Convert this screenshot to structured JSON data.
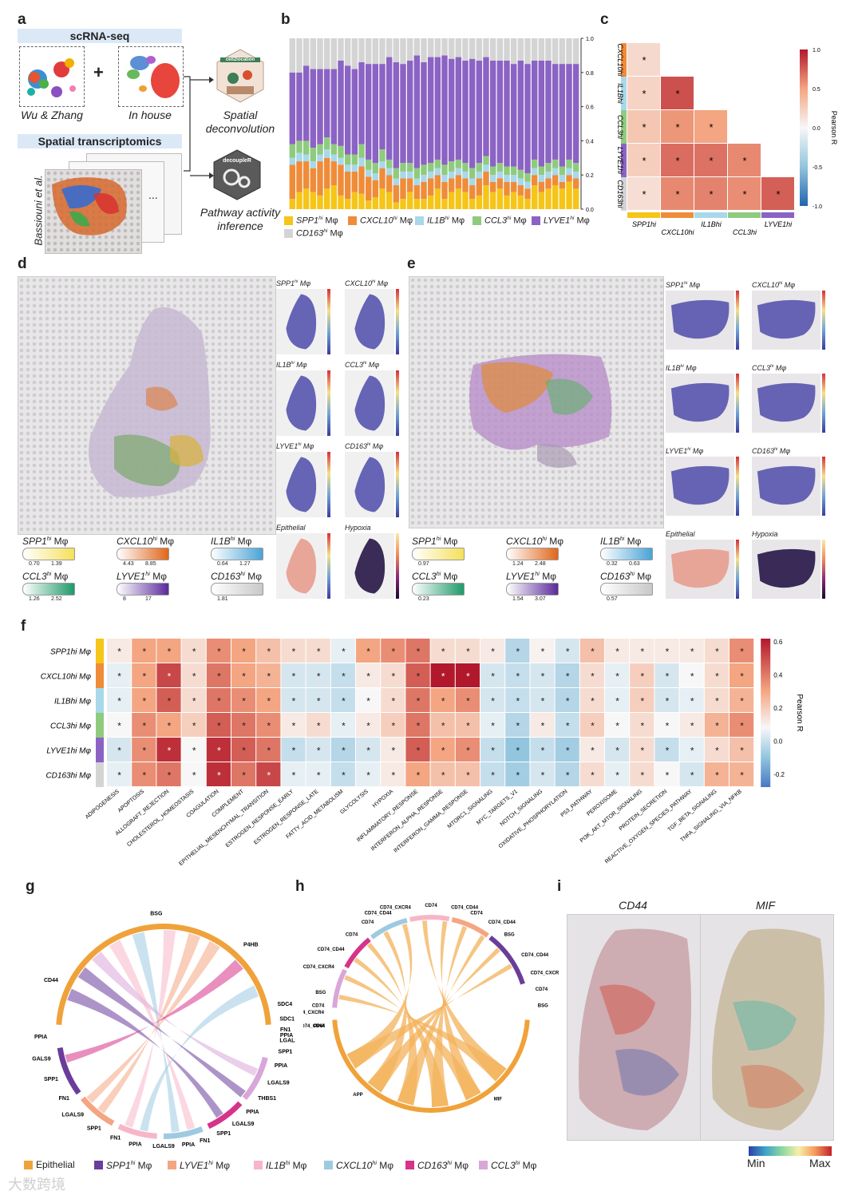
{
  "panel_letters": [
    "a",
    "b",
    "c",
    "d",
    "e",
    "f",
    "g",
    "h",
    "i"
  ],
  "panel_a": {
    "scrna_header": "scRNA-seq",
    "wu_zhang": "Wu & Zhang",
    "in_house": "In house",
    "plus": "+",
    "spatial_header": "Spatial transcriptomics",
    "bassiouni": "Bassiouni et al.",
    "ellipsis": "...",
    "cell2location_badge": "cell2location",
    "spatial_deconvolution": "Spatial deconvolution",
    "decoupler_badge": "decoupleR",
    "pathway_activity": "Pathway activity inference"
  },
  "panel_b": {
    "chart_data": {
      "type": "bar",
      "stacked": true,
      "title": "",
      "xlabel": "",
      "ylabel": "",
      "ylim": [
        0,
        1.0
      ],
      "yticks": [
        "0.0",
        "0.2",
        "0.4",
        "0.6",
        "0.8",
        "1.0"
      ],
      "n_bars": 42,
      "series": [
        {
          "name": "SPP1hi Mφ",
          "color": "#f5c518",
          "values": [
            0.06,
            0.1,
            0.12,
            0.1,
            0.08,
            0.12,
            0.14,
            0.08,
            0.06,
            0.1,
            0.09,
            0.05,
            0.07,
            0.12,
            0.1,
            0.04,
            0.06,
            0.1,
            0.06,
            0.06,
            0.08,
            0.12,
            0.06,
            0.1,
            0.12,
            0.1,
            0.06,
            0.08,
            0.14,
            0.1,
            0.12,
            0.08,
            0.1,
            0.08,
            0.06,
            0.14,
            0.1,
            0.12,
            0.14,
            0.12,
            0.16,
            0.12
          ]
        },
        {
          "name": "CXCL10hi Mφ",
          "color": "#ef8c3a",
          "values": [
            0.2,
            0.18,
            0.16,
            0.14,
            0.2,
            0.18,
            0.14,
            0.18,
            0.16,
            0.12,
            0.16,
            0.14,
            0.1,
            0.12,
            0.1,
            0.1,
            0.12,
            0.08,
            0.08,
            0.1,
            0.1,
            0.08,
            0.1,
            0.08,
            0.08,
            0.08,
            0.08,
            0.1,
            0.08,
            0.06,
            0.06,
            0.08,
            0.06,
            0.06,
            0.06,
            0.06,
            0.06,
            0.06,
            0.06,
            0.04,
            0.04,
            0.06
          ]
        },
        {
          "name": "IL1Bhi Mφ",
          "color": "#a8d8ea",
          "values": [
            0.04,
            0.05,
            0.04,
            0.04,
            0.04,
            0.05,
            0.04,
            0.04,
            0.04,
            0.04,
            0.05,
            0.04,
            0.04,
            0.04,
            0.04,
            0.04,
            0.04,
            0.04,
            0.04,
            0.04,
            0.04,
            0.04,
            0.04,
            0.04,
            0.04,
            0.04,
            0.04,
            0.04,
            0.04,
            0.04,
            0.04,
            0.04,
            0.04,
            0.04,
            0.04,
            0.04,
            0.04,
            0.04,
            0.04,
            0.04,
            0.04,
            0.04
          ]
        },
        {
          "name": "CCL3hi Mφ",
          "color": "#8fcb7e",
          "values": [
            0.08,
            0.07,
            0.08,
            0.08,
            0.06,
            0.07,
            0.06,
            0.07,
            0.06,
            0.06,
            0.08,
            0.06,
            0.06,
            0.07,
            0.05,
            0.06,
            0.05,
            0.05,
            0.06,
            0.06,
            0.05,
            0.05,
            0.06,
            0.06,
            0.05,
            0.05,
            0.06,
            0.05,
            0.05,
            0.05,
            0.05,
            0.05,
            0.05,
            0.05,
            0.05,
            0.05,
            0.05,
            0.05,
            0.05,
            0.05,
            0.05,
            0.05
          ]
        },
        {
          "name": "LYVE1hi Mφ",
          "color": "#8b63c4",
          "values": [
            0.42,
            0.4,
            0.44,
            0.46,
            0.44,
            0.4,
            0.44,
            0.5,
            0.52,
            0.5,
            0.48,
            0.56,
            0.58,
            0.5,
            0.6,
            0.62,
            0.58,
            0.6,
            0.66,
            0.6,
            0.62,
            0.6,
            0.64,
            0.6,
            0.6,
            0.6,
            0.64,
            0.6,
            0.58,
            0.62,
            0.6,
            0.62,
            0.6,
            0.64,
            0.64,
            0.58,
            0.62,
            0.6,
            0.56,
            0.6,
            0.56,
            0.58
          ]
        },
        {
          "name": "CD163hi Mφ",
          "color": "#d4d4d4",
          "values": [
            0.2,
            0.2,
            0.16,
            0.18,
            0.18,
            0.18,
            0.18,
            0.13,
            0.16,
            0.18,
            0.14,
            0.15,
            0.15,
            0.15,
            0.11,
            0.14,
            0.15,
            0.13,
            0.1,
            0.14,
            0.11,
            0.11,
            0.1,
            0.12,
            0.11,
            0.13,
            0.12,
            0.13,
            0.11,
            0.13,
            0.13,
            0.13,
            0.15,
            0.13,
            0.15,
            0.13,
            0.13,
            0.13,
            0.15,
            0.15,
            0.15,
            0.15
          ]
        }
      ],
      "legend": [
        {
          "label": "SPP1",
          "sup": "hi",
          "suffix": " Mφ"
        },
        {
          "label": "CXCL10",
          "sup": "hi",
          "suffix": " Mφ"
        },
        {
          "label": "IL1B",
          "sup": "hi",
          "suffix": " Mφ"
        },
        {
          "label": "CCL3",
          "sup": "hi",
          "suffix": " Mφ"
        },
        {
          "label": "LYVE1",
          "sup": "hi",
          "suffix": " Mφ"
        },
        {
          "label": "CD163",
          "sup": "hi",
          "suffix": " Mφ"
        }
      ]
    }
  },
  "panel_c": {
    "chart_data": {
      "type": "heatmap",
      "title": "",
      "colorbar_label": "Pearson R",
      "colorbar_ticks": [
        "1.0",
        "0.5",
        "0.0",
        "-0.5",
        "-1.0"
      ],
      "row_labels": [
        "CXCL10hi",
        "IL1Bhi",
        "CCL3hi",
        "LYVE1hi",
        "CD163hi"
      ],
      "col_labels": [
        "SPP1hi",
        "CXCL10hi",
        "IL1Bhi",
        "CCL3hi",
        "LYVE1hi"
      ],
      "values": [
        [
          0.18,
          null,
          null,
          null,
          null
        ],
        [
          0.22,
          0.8,
          null,
          null,
          null
        ],
        [
          0.3,
          0.55,
          0.5,
          null,
          null
        ],
        [
          0.25,
          0.7,
          0.68,
          0.6,
          null
        ],
        [
          0.15,
          0.6,
          0.62,
          0.58,
          0.75
        ]
      ],
      "significant": "*"
    }
  },
  "panel_d": {
    "insets": [
      {
        "title": "SPP1",
        "sup": "hi",
        "suffix": " Mφ"
      },
      {
        "title": "CXCL10",
        "sup": "hi",
        "suffix": " Mφ"
      },
      {
        "title": "IL1B",
        "sup": "hi",
        "suffix": " Mφ"
      },
      {
        "title": "CCL3",
        "sup": "hi",
        "suffix": " Mφ"
      },
      {
        "title": "LYVE1",
        "sup": "hi",
        "suffix": " Mφ"
      },
      {
        "title": "CD163",
        "sup": "hi",
        "suffix": " Mφ"
      },
      {
        "title": "Epithelial",
        "sup": "",
        "suffix": ""
      },
      {
        "title": "Hypoxia",
        "sup": "",
        "suffix": ""
      }
    ],
    "pills": [
      {
        "label": "SPP1",
        "sup": "hi",
        "suffix": " Mφ",
        "ticks": [
          "0.70",
          "1.39"
        ]
      },
      {
        "label": "CXCL10",
        "sup": "hi",
        "suffix": " Mφ",
        "ticks": [
          "4.43",
          "8.85"
        ]
      },
      {
        "label": "IL1B",
        "sup": "hi",
        "suffix": " Mφ",
        "ticks": [
          "0.64",
          "1.27"
        ]
      },
      {
        "label": "CCL3",
        "sup": "hi",
        "suffix": " Mφ",
        "ticks": [
          "1.26",
          "2.52"
        ]
      },
      {
        "label": "LYVE1",
        "sup": "hi",
        "suffix": " Mφ",
        "ticks": [
          "8",
          "17"
        ]
      },
      {
        "label": "CD163",
        "sup": "hi",
        "suffix": " Mφ",
        "ticks": [
          "1.81",
          ""
        ]
      }
    ]
  },
  "panel_e": {
    "insets": [
      {
        "title": "SPP1",
        "sup": "hi",
        "suffix": " Mφ"
      },
      {
        "title": "CXCL10",
        "sup": "hi",
        "suffix": " Mφ"
      },
      {
        "title": "IL1B",
        "sup": "hi",
        "suffix": " Mφ"
      },
      {
        "title": "CCL3",
        "sup": "hi",
        "suffix": " Mφ"
      },
      {
        "title": "LYVE1",
        "sup": "hi",
        "suffix": " Mφ"
      },
      {
        "title": "CD163",
        "sup": "hi",
        "suffix": " Mφ"
      },
      {
        "title": "Epithelial",
        "sup": "",
        "suffix": ""
      },
      {
        "title": "Hypoxia",
        "sup": "",
        "suffix": ""
      }
    ],
    "pills": [
      {
        "label": "SPP1",
        "sup": "hi",
        "suffix": " Mφ",
        "ticks": [
          "0.97",
          ""
        ]
      },
      {
        "label": "CXCL10",
        "sup": "hi",
        "suffix": " Mφ",
        "ticks": [
          "1.24",
          "2.48"
        ]
      },
      {
        "label": "IL1B",
        "sup": "hi",
        "suffix": " Mφ",
        "ticks": [
          "0.32",
          "0.63"
        ]
      },
      {
        "label": "CCL3",
        "sup": "hi",
        "suffix": " Mφ",
        "ticks": [
          "0.23",
          ""
        ]
      },
      {
        "label": "LYVE1",
        "sup": "hi",
        "suffix": " Mφ",
        "ticks": [
          "1.54",
          "3.07"
        ]
      },
      {
        "label": "CD163",
        "sup": "hi",
        "suffix": " Mφ",
        "ticks": [
          "0.57",
          ""
        ]
      }
    ]
  },
  "panel_f": {
    "chart_data": {
      "type": "heatmap",
      "title": "",
      "colorbar_label": "Pearson R",
      "colorbar_ticks": [
        "0.6",
        "0.4",
        "0.2",
        "0.0",
        "-0.2"
      ],
      "row_labels": [
        "SPP1hi Mφ",
        "CXCL10hi Mφ",
        "IL1Bhi Mφ",
        "CCL3hi Mφ",
        "LYVE1hi Mφ",
        "CD163hi Mφ"
      ],
      "col_labels": [
        "ADIPOGENESIS",
        "APOPTOSIS",
        "ALLOGRAFT_REJECTION",
        "CHOLESTEROL_HOMEOSTASIS",
        "COAGULATION",
        "COMPLEMENT",
        "EPITHELIAL_MESENCHYMAL_TRANSITION",
        "ESTROGEN_RESPONSE_EARLY",
        "ESTROGEN_RESPONSE_LATE",
        "FATTY_ACID_METABOLISM",
        "GLYCOLYSIS",
        "HYPOXIA",
        "INFLAMMATORY_RESPONSE",
        "INTERFERON_ALPHA_RESPONSE",
        "INTERFERON_GAMMA_RESPONSE",
        "MTORC1_SIGNALING",
        "MYC_TARGETS_V1",
        "NOTCH_SIGNALING",
        "OXIDATIVE_PHOSPHORYLATION",
        "P53_PATHWAY",
        "PEROXISOME",
        "PI3K_AKT_MTOR_SIGNALING",
        "PROTEIN_SECRETION",
        "REACTIVE_OXYGEN_SPECIES_PATHWAY",
        "TGF_BETA_SIGNALING",
        "TNFA_SIGNALING_VIA_NFKB"
      ],
      "values": [
        [
          0.05,
          0.3,
          0.3,
          0.1,
          0.35,
          0.3,
          0.2,
          0.1,
          0.1,
          -0.05,
          0.3,
          0.35,
          0.4,
          0.1,
          0.1,
          0.05,
          -0.2,
          0.02,
          -0.1,
          0.2,
          0.05,
          0.05,
          0.05,
          0.05,
          0.1,
          0.35
        ],
        [
          -0.05,
          0.3,
          0.5,
          0.1,
          0.4,
          0.3,
          0.25,
          -0.1,
          -0.1,
          -0.15,
          0.05,
          0.1,
          0.45,
          0.6,
          0.6,
          -0.1,
          -0.15,
          -0.1,
          -0.2,
          0.1,
          -0.05,
          0.15,
          -0.1,
          0.0,
          0.1,
          0.3
        ],
        [
          -0.05,
          0.3,
          0.45,
          0.1,
          0.4,
          0.35,
          0.3,
          -0.1,
          -0.1,
          -0.15,
          0.0,
          0.1,
          0.4,
          0.3,
          0.35,
          -0.1,
          -0.15,
          -0.1,
          -0.2,
          0.1,
          -0.05,
          0.15,
          -0.1,
          -0.05,
          0.1,
          0.25
        ],
        [
          0.0,
          0.35,
          0.3,
          0.15,
          0.45,
          0.4,
          0.35,
          0.05,
          0.1,
          -0.05,
          0.05,
          0.15,
          0.4,
          0.2,
          0.2,
          -0.05,
          -0.2,
          0.05,
          -0.15,
          0.15,
          0.0,
          0.1,
          0.0,
          0.05,
          0.25,
          0.35
        ],
        [
          -0.1,
          0.35,
          0.55,
          0.0,
          0.55,
          0.45,
          0.4,
          -0.15,
          -0.1,
          -0.2,
          -0.1,
          0.05,
          0.45,
          0.3,
          0.35,
          -0.15,
          -0.3,
          -0.15,
          -0.25,
          0.05,
          -0.1,
          0.1,
          -0.15,
          -0.05,
          0.1,
          0.2
        ],
        [
          -0.05,
          0.35,
          0.4,
          0.0,
          0.55,
          0.4,
          0.5,
          -0.05,
          -0.05,
          -0.15,
          -0.05,
          0.05,
          0.3,
          0.2,
          0.2,
          -0.15,
          -0.25,
          -0.1,
          -0.2,
          0.1,
          -0.05,
          0.1,
          0.0,
          -0.1,
          0.25,
          0.25
        ]
      ],
      "significant": "*"
    }
  },
  "panel_g": {
    "labels": [
      "BSG",
      "P4HB",
      "SDC4",
      "SDC1",
      "CD44",
      "PPIA",
      "LGALS9",
      "SPP1",
      "FN1",
      "LGALS9",
      "SPP1",
      "FN1",
      "PPIA",
      "LGALS9",
      "PPIA",
      "FN1",
      "SPP1",
      "LGALS9",
      "PPIA",
      "THBS1",
      "LGALS9",
      "PPIA",
      "SPP1",
      "LGALS9",
      "PPIA",
      "FN1"
    ],
    "legend": [
      {
        "label": "Epithelial",
        "sup": "",
        "suffix": "",
        "color": "#f0a23a"
      },
      {
        "label": "SPP1",
        "sup": "hi",
        "suffix": " Mφ",
        "color": "#6a3d9a"
      },
      {
        "label": "LYVE1",
        "sup": "hi",
        "suffix": " Mφ",
        "color": "#f4a582"
      },
      {
        "label": "IL1B",
        "sup": "hi",
        "suffix": " Mφ",
        "color": "#f7b6c8"
      },
      {
        "label": "CXCL10",
        "sup": "hi",
        "suffix": " Mφ",
        "color": "#9ecae1"
      },
      {
        "label": "CD163",
        "sup": "hi",
        "suffix": " Mφ",
        "color": "#d6338a"
      },
      {
        "label": "CCL3",
        "sup": "hi",
        "suffix": " Mφ",
        "color": "#d9a6d9"
      }
    ]
  },
  "panel_h": {
    "labels": [
      "CD74_CXCR4",
      "CD74_CD44",
      "CD74",
      "CD74",
      "BSG",
      "CD74",
      "CD74_CXCR4",
      "CD74_CD44",
      "CD74_CD44",
      "CD74_CXCR4",
      "CD74",
      "CD74_CD44",
      "CD74",
      "CD74_CD44",
      "BSG",
      "CD74_CD44",
      "CD74_CXCR4",
      "CD74",
      "BSG",
      "PPIA",
      "APP",
      "MIF"
    ]
  },
  "panel_i": {
    "cd44": "CD44",
    "mif": "MIF",
    "min": "Min",
    "max": "Max"
  },
  "watermark": "大数跨境"
}
